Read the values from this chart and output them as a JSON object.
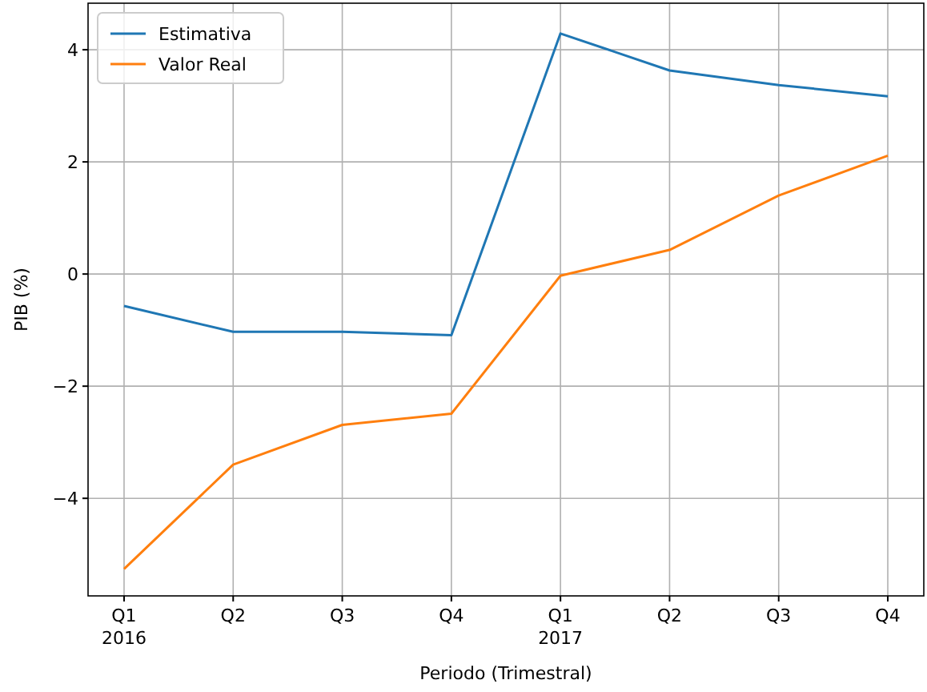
{
  "chart_data": {
    "type": "line",
    "xlabel": "Periodo (Trimestral)",
    "ylabel": "PIB (%)",
    "categories": [
      "Q1\n2016",
      "Q2",
      "Q3",
      "Q4",
      "Q1\n2017",
      "Q2",
      "Q3",
      "Q4"
    ],
    "series": [
      {
        "name": "Estimativa",
        "color": "#1f77b4",
        "values": [
          -0.57,
          -1.03,
          -1.03,
          -1.09,
          4.29,
          3.63,
          3.37,
          3.17
        ]
      },
      {
        "name": "Valor Real",
        "color": "#ff7f0e",
        "values": [
          -5.26,
          -3.4,
          -2.69,
          -2.49,
          -0.03,
          0.43,
          1.4,
          2.11
        ]
      }
    ],
    "ylim": [
      -5.74,
      4.83
    ],
    "yticks": [
      {
        "value": -4,
        "label": "−4"
      },
      {
        "value": -2,
        "label": "−2"
      },
      0,
      2,
      4
    ],
    "grid": true,
    "legend": "top left",
    "marker": "none",
    "line_style": "solid"
  }
}
